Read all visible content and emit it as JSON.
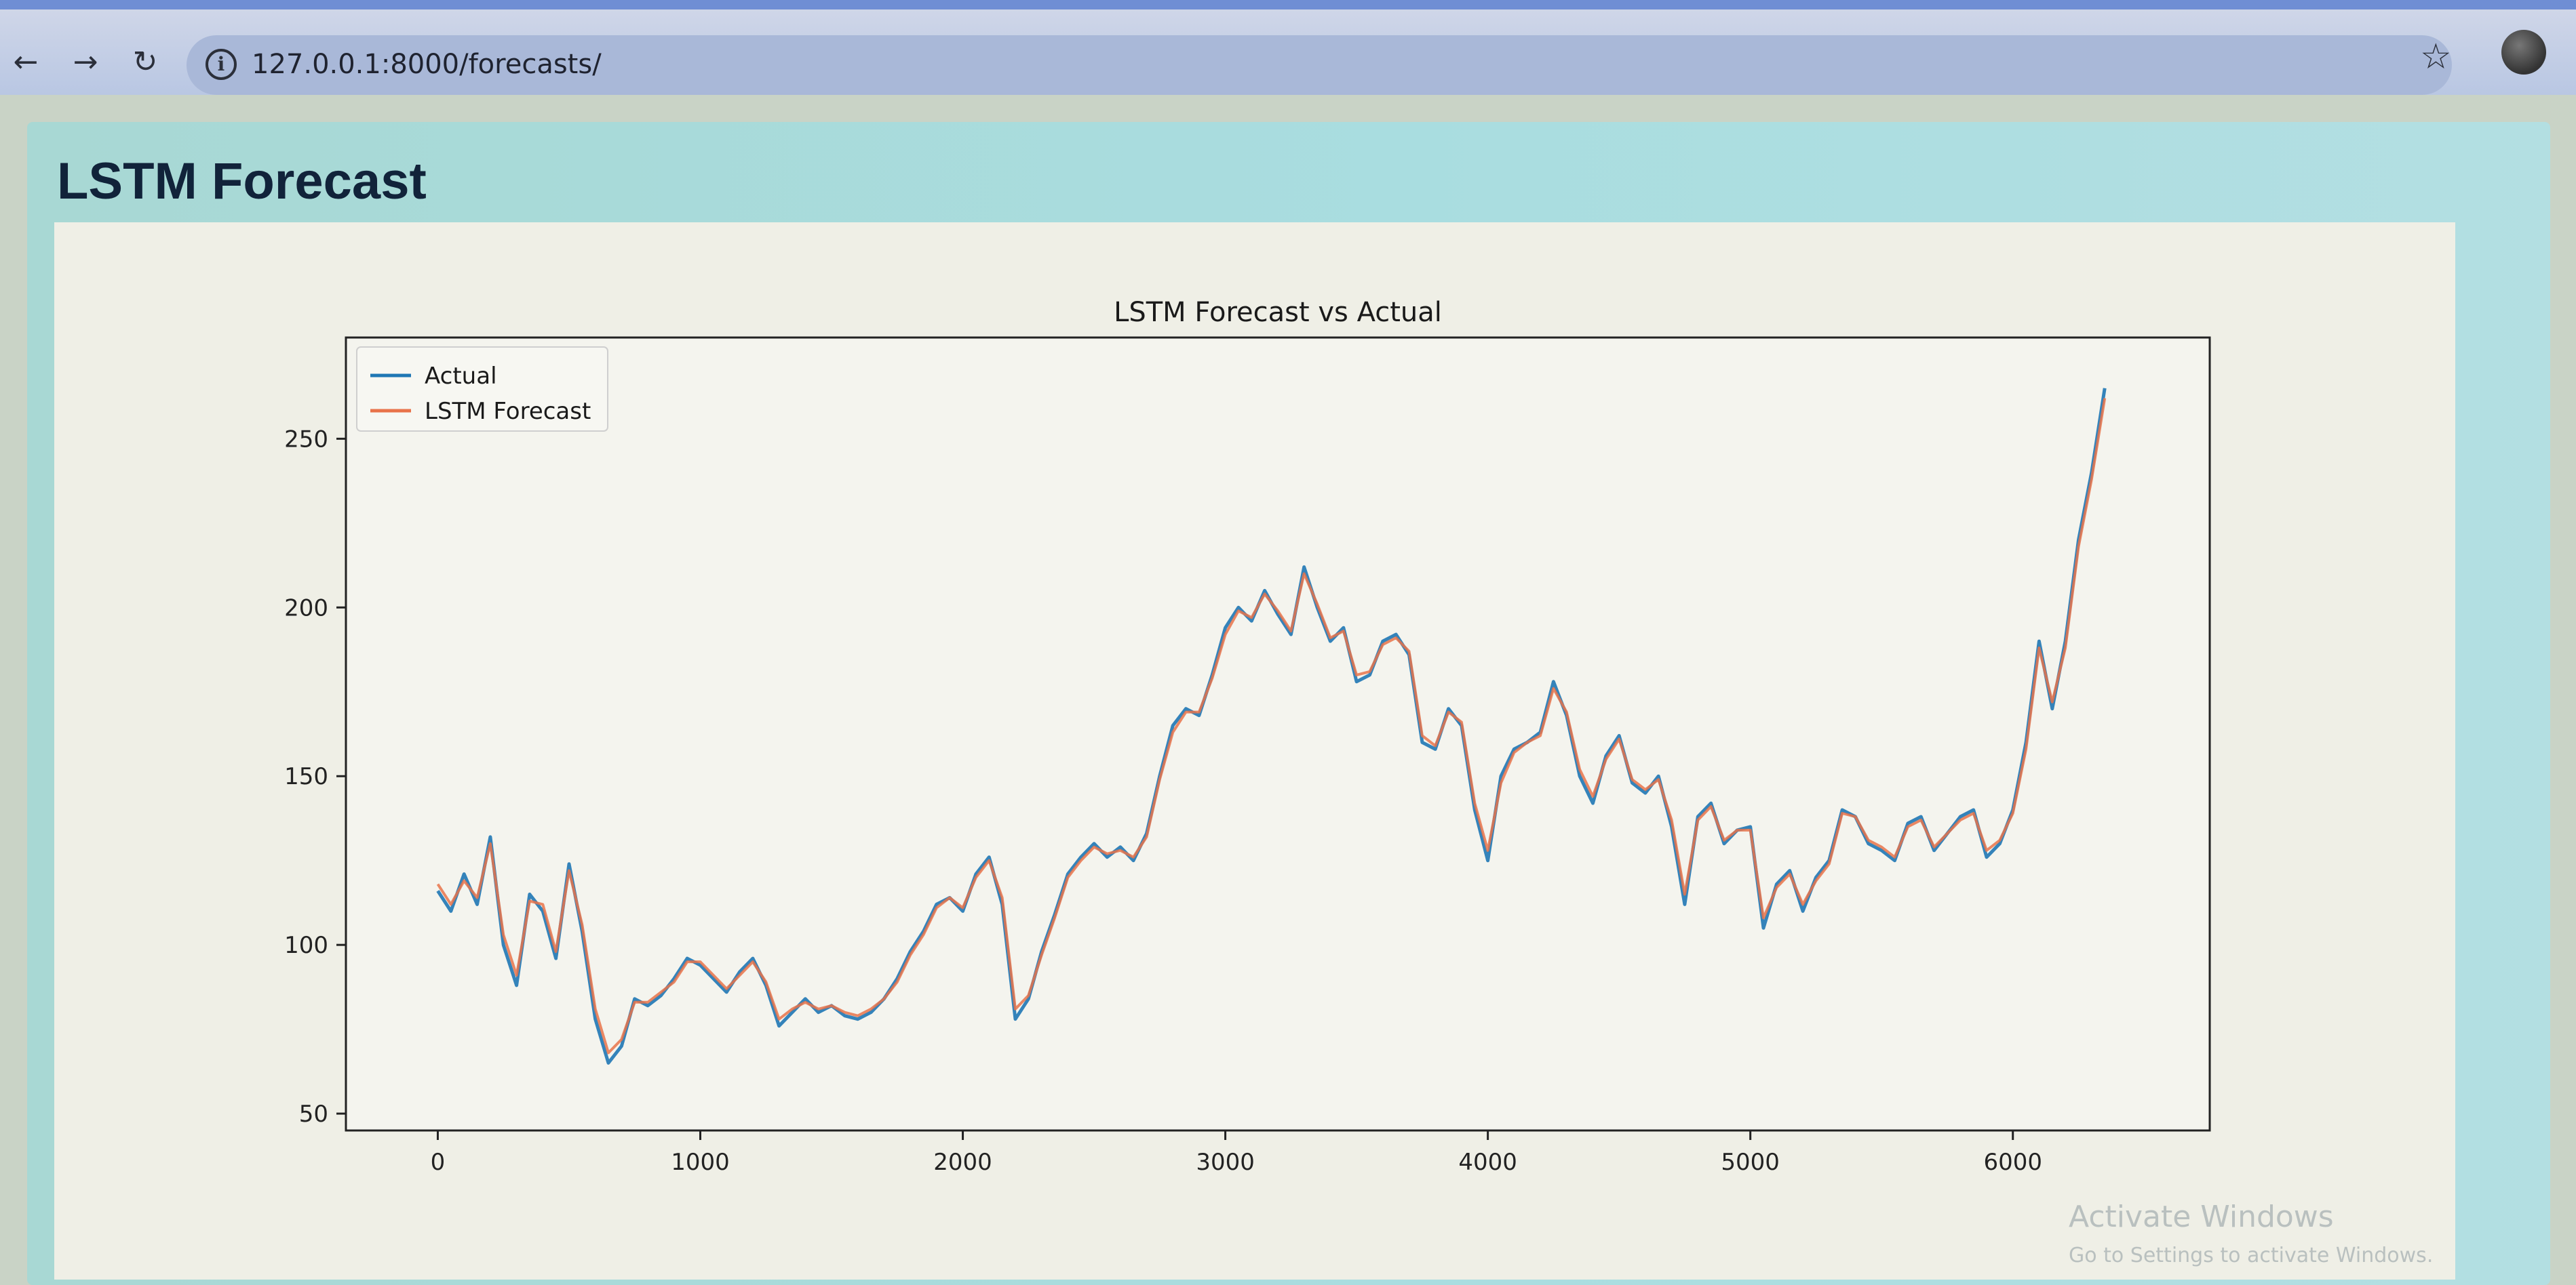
{
  "browser": {
    "back_icon": "arrow-left-icon",
    "forward_icon": "arrow-right-icon",
    "reload_icon": "reload-icon",
    "url": "127.0.0.1:8000/forecasts/",
    "bookmark_icon": "star-icon"
  },
  "page": {
    "title": "LSTM Forecast"
  },
  "watermark": {
    "title": "Activate Windows",
    "subtitle": "Go to Settings to activate Windows."
  },
  "chart_data": {
    "type": "line",
    "title": "LSTM Forecast vs Actual",
    "xlabel": "",
    "ylabel": "",
    "xlim": [
      -350,
      6750
    ],
    "ylim": [
      45,
      280
    ],
    "xticks": [
      0,
      1000,
      2000,
      3000,
      4000,
      5000,
      6000
    ],
    "yticks": [
      50,
      100,
      150,
      200,
      250
    ],
    "legend_position": "top-left",
    "series": [
      {
        "name": "Actual",
        "color": "#1f77b4",
        "x": [
          0,
          50,
          100,
          150,
          200,
          250,
          300,
          350,
          400,
          450,
          500,
          550,
          600,
          650,
          700,
          750,
          800,
          850,
          900,
          950,
          1000,
          1050,
          1100,
          1150,
          1200,
          1250,
          1300,
          1350,
          1400,
          1450,
          1500,
          1550,
          1600,
          1650,
          1700,
          1750,
          1800,
          1850,
          1900,
          1950,
          2000,
          2050,
          2100,
          2150,
          2200,
          2250,
          2300,
          2350,
          2400,
          2450,
          2500,
          2550,
          2600,
          2650,
          2700,
          2750,
          2800,
          2850,
          2900,
          2950,
          3000,
          3050,
          3100,
          3150,
          3200,
          3250,
          3300,
          3350,
          3400,
          3450,
          3500,
          3550,
          3600,
          3650,
          3700,
          3750,
          3800,
          3850,
          3900,
          3950,
          4000,
          4050,
          4100,
          4150,
          4200,
          4250,
          4300,
          4350,
          4400,
          4450,
          4500,
          4550,
          4600,
          4650,
          4700,
          4750,
          4800,
          4850,
          4900,
          4950,
          5000,
          5050,
          5100,
          5150,
          5200,
          5250,
          5300,
          5350,
          5400,
          5450,
          5500,
          5550,
          5600,
          5650,
          5700,
          5750,
          5800,
          5850,
          5900,
          5950,
          6000,
          6050,
          6100,
          6150,
          6200,
          6250,
          6300,
          6350
        ],
        "y": [
          116,
          110,
          121,
          112,
          132,
          100,
          88,
          115,
          110,
          96,
          124,
          104,
          78,
          65,
          70,
          84,
          82,
          85,
          90,
          96,
          94,
          90,
          86,
          92,
          96,
          88,
          76,
          80,
          84,
          80,
          82,
          79,
          78,
          80,
          84,
          90,
          98,
          104,
          112,
          114,
          110,
          121,
          126,
          112,
          78,
          84,
          98,
          109,
          121,
          126,
          130,
          126,
          129,
          125,
          133,
          150,
          165,
          170,
          168,
          180,
          194,
          200,
          196,
          205,
          198,
          192,
          212,
          200,
          190,
          194,
          178,
          180,
          190,
          192,
          186,
          160,
          158,
          170,
          165,
          140,
          125,
          150,
          158,
          160,
          163,
          178,
          168,
          150,
          142,
          156,
          162,
          148,
          145,
          150,
          135,
          112,
          138,
          142,
          130,
          134,
          135,
          105,
          118,
          122,
          110,
          120,
          125,
          140,
          138,
          130,
          128,
          125,
          136,
          138,
          128,
          133,
          138,
          140,
          126,
          130,
          140,
          160,
          190,
          170,
          190,
          220,
          240,
          265
        ]
      },
      {
        "name": "LSTM Forecast",
        "color": "#e8734a",
        "x": [
          0,
          50,
          100,
          150,
          200,
          250,
          300,
          350,
          400,
          450,
          500,
          550,
          600,
          650,
          700,
          750,
          800,
          850,
          900,
          950,
          1000,
          1050,
          1100,
          1150,
          1200,
          1250,
          1300,
          1350,
          1400,
          1450,
          1500,
          1550,
          1600,
          1650,
          1700,
          1750,
          1800,
          1850,
          1900,
          1950,
          2000,
          2050,
          2100,
          2150,
          2200,
          2250,
          2300,
          2350,
          2400,
          2450,
          2500,
          2550,
          2600,
          2650,
          2700,
          2750,
          2800,
          2850,
          2900,
          2950,
          3000,
          3050,
          3100,
          3150,
          3200,
          3250,
          3300,
          3350,
          3400,
          3450,
          3500,
          3550,
          3600,
          3650,
          3700,
          3750,
          3800,
          3850,
          3900,
          3950,
          4000,
          4050,
          4100,
          4150,
          4200,
          4250,
          4300,
          4350,
          4400,
          4450,
          4500,
          4550,
          4600,
          4650,
          4700,
          4750,
          4800,
          4850,
          4900,
          4950,
          5000,
          5050,
          5100,
          5150,
          5200,
          5250,
          5300,
          5350,
          5400,
          5450,
          5500,
          5550,
          5600,
          5650,
          5700,
          5750,
          5800,
          5850,
          5900,
          5950,
          6000,
          6050,
          6100,
          6150,
          6200,
          6250,
          6300,
          6350
        ],
        "y": [
          118,
          112,
          119,
          114,
          130,
          103,
          91,
          113,
          112,
          98,
          122,
          106,
          81,
          68,
          72,
          83,
          83,
          86,
          89,
          95,
          95,
          91,
          87,
          91,
          95,
          89,
          78,
          81,
          83,
          81,
          82,
          80,
          79,
          81,
          84,
          89,
          97,
          103,
          111,
          114,
          111,
          120,
          125,
          114,
          81,
          85,
          97,
          108,
          120,
          125,
          129,
          127,
          128,
          126,
          132,
          149,
          163,
          169,
          169,
          179,
          192,
          199,
          197,
          204,
          199,
          193,
          210,
          201,
          191,
          193,
          180,
          181,
          189,
          191,
          187,
          162,
          159,
          169,
          166,
          142,
          128,
          148,
          157,
          160,
          162,
          176,
          169,
          152,
          144,
          155,
          161,
          149,
          146,
          149,
          137,
          115,
          137,
          141,
          131,
          134,
          134,
          108,
          117,
          121,
          112,
          119,
          124,
          139,
          138,
          131,
          129,
          126,
          135,
          137,
          129,
          133,
          137,
          139,
          128,
          131,
          139,
          158,
          188,
          172,
          188,
          218,
          238,
          262
        ]
      }
    ]
  }
}
